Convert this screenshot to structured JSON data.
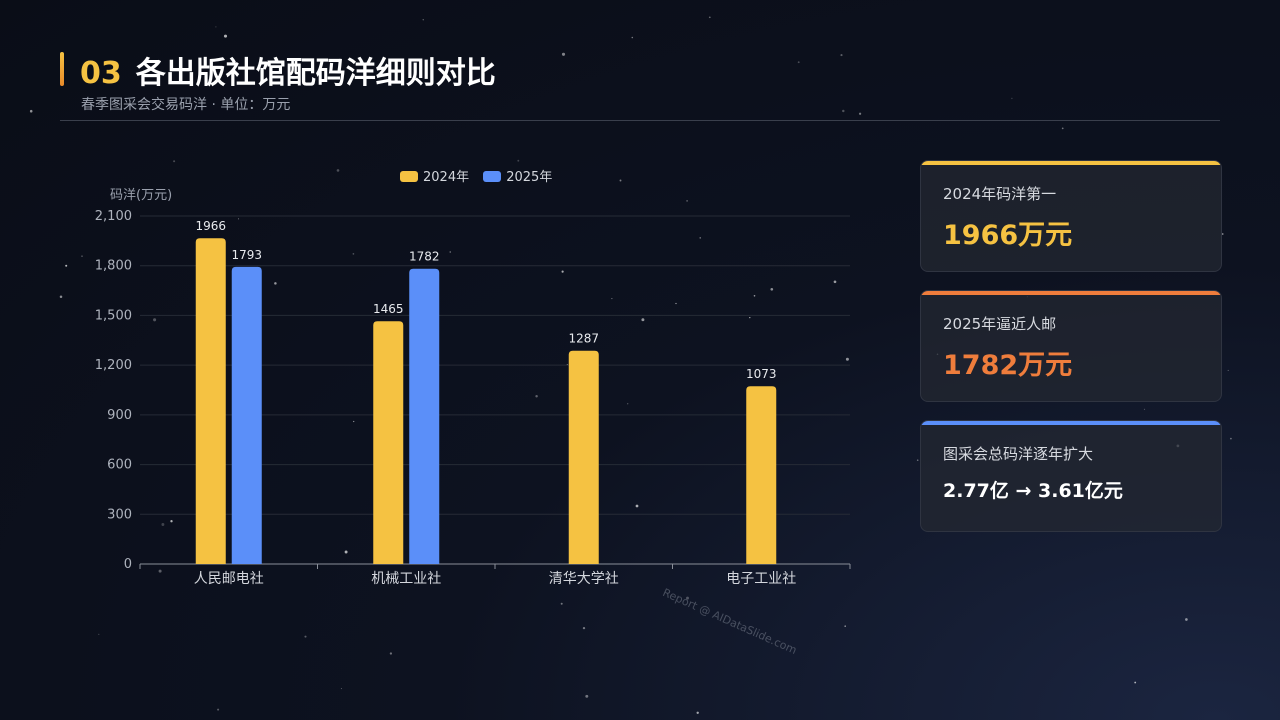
{
  "header": {
    "number": "03",
    "title": "各出版社馆配码洋细则对比",
    "subtitle": "春季图采会交易码洋 · 单位：万元"
  },
  "colors": {
    "gold": "#f5c242",
    "blue": "#5b8ff9",
    "orange": "#ef7d3c"
  },
  "chart_data": {
    "type": "bar",
    "categories": [
      "人民邮电社",
      "机械工业社",
      "清华大学社",
      "电子工业社"
    ],
    "series": [
      {
        "name": "2024年",
        "values": [
          1966,
          1465,
          1287,
          1073
        ]
      },
      {
        "name": "2025年",
        "values": [
          1793,
          1782,
          null,
          null
        ]
      }
    ],
    "ylabel": "码洋(万元)",
    "ylim": [
      0,
      2100
    ],
    "yticks": [
      0,
      300,
      600,
      900,
      1200,
      1500,
      1800,
      2100
    ],
    "ytick_labels": [
      "0",
      "300",
      "600",
      "900",
      "1,200",
      "1,500",
      "1,800",
      "2,100"
    ],
    "grid": true,
    "legend_position": "top-center"
  },
  "cards": [
    {
      "label": "2024年码洋第一",
      "value": "1966万元",
      "value_color": "#f5c242",
      "top_color": "#f5c242"
    },
    {
      "label": "2025年逼近人邮",
      "value": "1782万元",
      "value_color": "#ef7d3c",
      "top_color": "#ef7d3c"
    },
    {
      "label": "图采会总码洋逐年扩大",
      "value": "2.77亿 → 3.61亿元",
      "value_color": "#ffffff",
      "top_color": "#5b8ff9"
    }
  ],
  "watermark": "Report @ AIDataSlide.com"
}
